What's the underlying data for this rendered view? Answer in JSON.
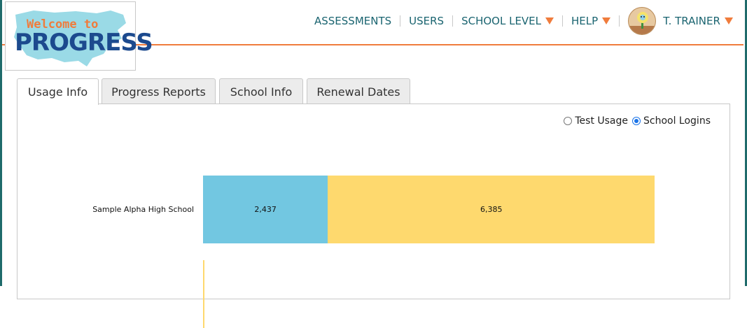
{
  "logo": {
    "line1": "Welcome to",
    "line2": "PROGRESS"
  },
  "nav": {
    "items": [
      {
        "label": "ASSESSMENTS",
        "dropdown": false
      },
      {
        "label": "USERS",
        "dropdown": false
      },
      {
        "label": "SCHOOL LEVEL",
        "dropdown": true
      },
      {
        "label": "HELP",
        "dropdown": true
      }
    ],
    "user": {
      "label": "T. TRAINER",
      "dropdown": true
    }
  },
  "tabs": [
    {
      "label": "Usage Info",
      "active": true
    },
    {
      "label": "Progress Reports",
      "active": false
    },
    {
      "label": "School Info",
      "active": false
    },
    {
      "label": "Renewal Dates",
      "active": false
    }
  ],
  "view_toggle": {
    "options": [
      {
        "label": "Test Usage",
        "checked": false
      },
      {
        "label": "School Logins",
        "checked": true
      }
    ]
  },
  "colors": {
    "accent": "#f07c3c",
    "nav_text": "#1a6470",
    "series_1": "#72c7e1",
    "series_2": "#fed96e"
  },
  "chart_data": {
    "type": "bar",
    "orientation": "horizontal",
    "stacked": true,
    "categories": [
      "Sample Alpha High School",
      ""
    ],
    "series": [
      {
        "values": [
          2437,
          0
        ],
        "color": "#72c7e1"
      },
      {
        "values": [
          6385,
          0
        ],
        "color": "#fed96e"
      }
    ],
    "data_labels": [
      [
        "2,437",
        "6,385"
      ]
    ],
    "xlim": [
      0,
      10800
    ]
  }
}
